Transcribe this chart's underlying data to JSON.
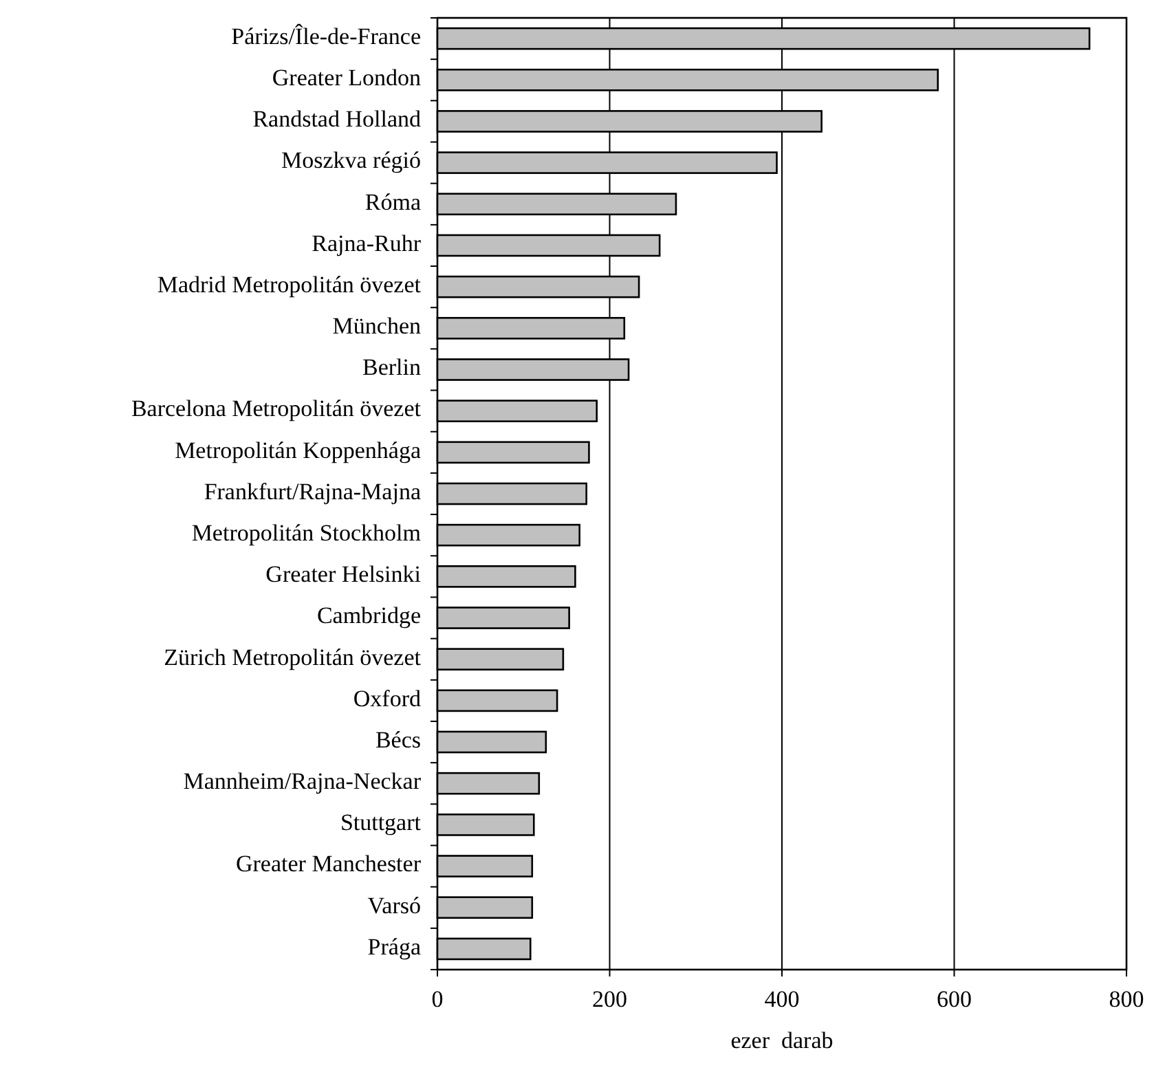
{
  "chart_data": {
    "type": "bar",
    "orientation": "horizontal",
    "xlabel": "ezer  darab",
    "categories": [
      "Párizs/Île-de-France",
      "Greater London",
      "Randstad Holland",
      "Moszkva régió",
      "Róma",
      "Rajna-Ruhr",
      "Madrid Metropolitán övezet",
      "München",
      "Berlin",
      "Barcelona Metropolitán övezet",
      "Metropolitán Koppenhága",
      "Frankfurt/Rajna-Majna",
      "Metropolitán Stockholm",
      "Greater Helsinki",
      "Cambridge",
      "Zürich Metropolitán övezet",
      "Oxford",
      "Bécs",
      "Mannheim/Rajna-Neckar",
      "Stuttgart",
      "Greater Manchester",
      "Varsó",
      "Prága"
    ],
    "values": [
      757,
      581,
      446,
      394,
      277,
      258,
      234,
      217,
      222,
      185,
      176,
      173,
      165,
      160,
      153,
      146,
      139,
      126,
      118,
      112,
      110,
      110,
      108
    ],
    "color": "#c0c0c0",
    "xlim": [
      0,
      800
    ],
    "xticks": [
      0,
      200,
      400,
      600,
      800
    ],
    "grid": "x"
  }
}
